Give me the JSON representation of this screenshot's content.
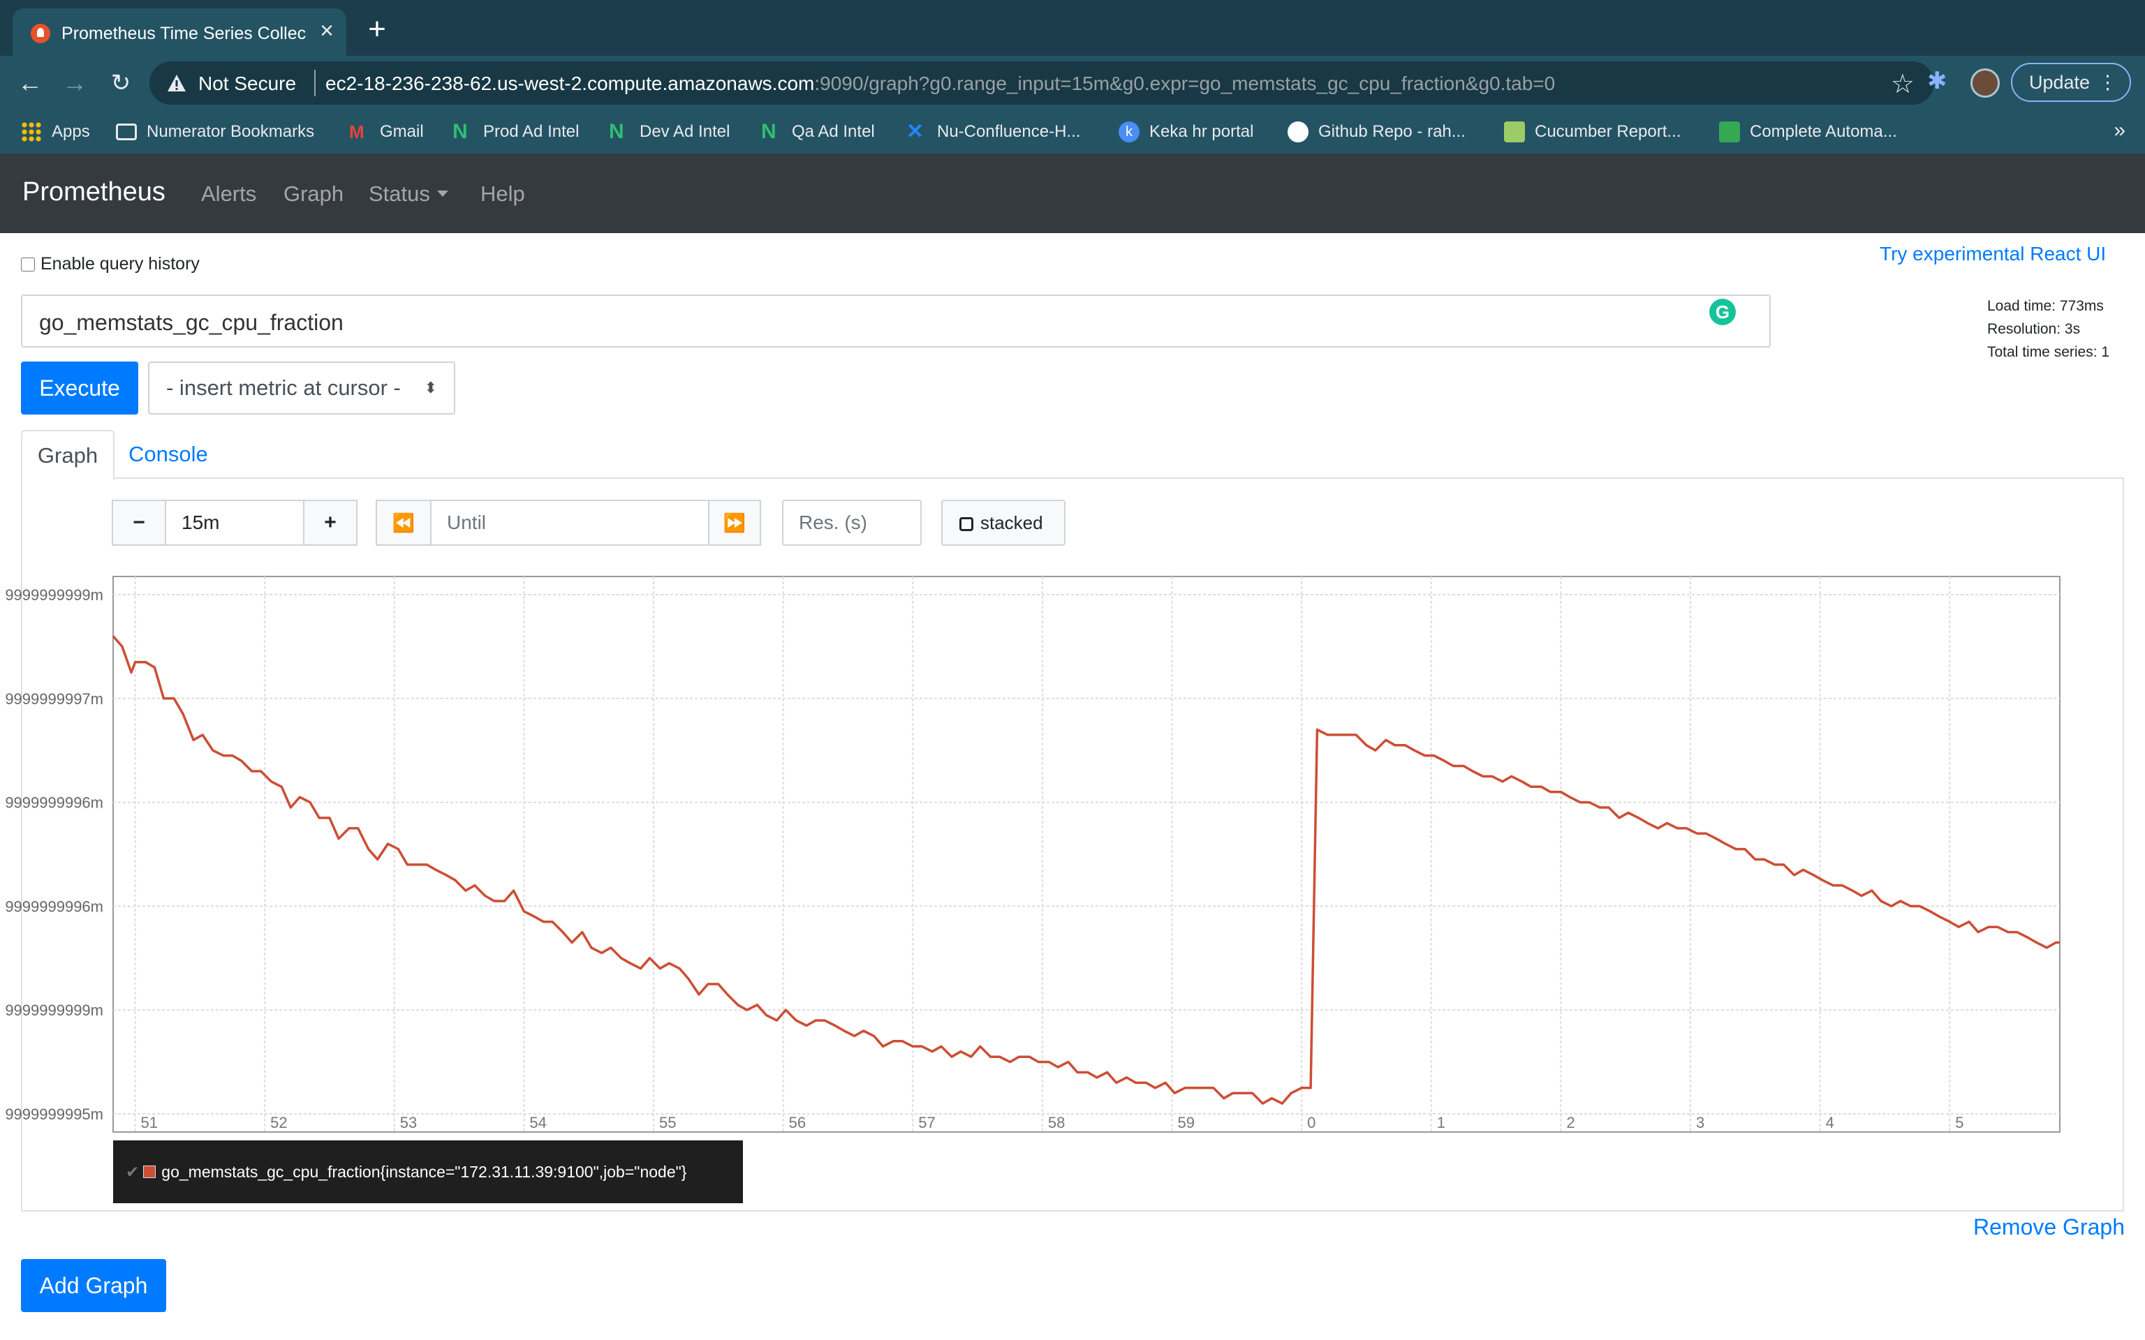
{
  "browser": {
    "tab_title": "Prometheus Time Series Collec",
    "security_label": "Not Secure",
    "url_host": "ec2-18-236-238-62.us-west-2.compute.amazonaws.com",
    "url_rest": ":9090/graph?g0.range_input=15m&g0.expr=go_memstats_gc_cpu_fraction&g0.tab=0",
    "update_label": "Update",
    "bookmarks": [
      {
        "label": "Apps",
        "color": "#fbbc04"
      },
      {
        "label": "Numerator Bookmarks",
        "color": "#ffffff"
      },
      {
        "label": "Gmail",
        "color": "#ea4335"
      },
      {
        "label": "Prod Ad Intel",
        "color": "#2fbf71"
      },
      {
        "label": "Dev Ad Intel",
        "color": "#2fbf71"
      },
      {
        "label": "Qa Ad Intel",
        "color": "#2fbf71"
      },
      {
        "label": "Nu-Confluence-H...",
        "color": "#2684ff"
      },
      {
        "label": "Keka hr portal",
        "color": "#4a8df6"
      },
      {
        "label": "Github Repo - rah...",
        "color": "#ffffff"
      },
      {
        "label": "Cucumber Report...",
        "color": "#9ccc65"
      },
      {
        "label": "Complete Automa...",
        "color": "#34a853"
      }
    ]
  },
  "nav": {
    "brand": "Prometheus",
    "alerts": "Alerts",
    "graph": "Graph",
    "status": "Status",
    "help": "Help"
  },
  "page": {
    "history_label": "Enable query history",
    "react_link": "Try experimental React UI",
    "stats": {
      "load_time": "Load time: 773ms",
      "resolution": "Resolution: 3s",
      "total_series": "Total time series: 1"
    },
    "expression": "go_memstats_gc_cpu_fraction",
    "execute_label": "Execute",
    "metric_select": "- insert metric at cursor -",
    "tab_graph": "Graph",
    "tab_console": "Console",
    "range_value": "15m",
    "until_placeholder": "Until",
    "res_placeholder": "Res. (s)",
    "stacked_label": "stacked",
    "remove_graph": "Remove Graph",
    "add_graph": "Add Graph"
  },
  "chart_data": {
    "type": "line",
    "y_tick_labels": [
      "9999999999m",
      "9999999997m",
      "9999999996m",
      "9999999996m",
      "9999999999m",
      "9999999995m"
    ],
    "x_tick_labels": [
      "51",
      "52",
      "53",
      "54",
      "55",
      "56",
      "57",
      "58",
      "59",
      "0",
      "1",
      "2",
      "3",
      "4",
      "5"
    ],
    "x_range": [
      50.83,
      65.85
    ],
    "y_range": [
      0,
      1
    ],
    "grid": true,
    "series": [
      {
        "name": "go_memstats_gc_cpu_fraction{instance=\"172.31.11.39:9100\",job=\"node\"}",
        "color": "#cc4e35",
        "points": [
          [
            50.83,
            0.92
          ],
          [
            50.9,
            0.9
          ],
          [
            50.97,
            0.85
          ],
          [
            51.0,
            0.87
          ],
          [
            51.08,
            0.87
          ],
          [
            51.15,
            0.86
          ],
          [
            51.22,
            0.8
          ],
          [
            51.3,
            0.8
          ],
          [
            51.37,
            0.77
          ],
          [
            51.45,
            0.72
          ],
          [
            51.52,
            0.73
          ],
          [
            51.6,
            0.7
          ],
          [
            51.68,
            0.69
          ],
          [
            51.75,
            0.69
          ],
          [
            51.82,
            0.68
          ],
          [
            51.9,
            0.66
          ],
          [
            51.97,
            0.66
          ],
          [
            52.05,
            0.64
          ],
          [
            52.13,
            0.63
          ],
          [
            52.2,
            0.59
          ],
          [
            52.27,
            0.61
          ],
          [
            52.35,
            0.6
          ],
          [
            52.42,
            0.57
          ],
          [
            52.5,
            0.57
          ],
          [
            52.57,
            0.53
          ],
          [
            52.65,
            0.55
          ],
          [
            52.72,
            0.55
          ],
          [
            52.8,
            0.51
          ],
          [
            52.87,
            0.49
          ],
          [
            52.95,
            0.52
          ],
          [
            53.03,
            0.51
          ],
          [
            53.1,
            0.48
          ],
          [
            53.18,
            0.48
          ],
          [
            53.25,
            0.48
          ],
          [
            53.32,
            0.47
          ],
          [
            53.4,
            0.46
          ],
          [
            53.47,
            0.45
          ],
          [
            53.55,
            0.43
          ],
          [
            53.62,
            0.44
          ],
          [
            53.7,
            0.42
          ],
          [
            53.77,
            0.41
          ],
          [
            53.85,
            0.41
          ],
          [
            53.92,
            0.43
          ],
          [
            54.0,
            0.39
          ],
          [
            54.08,
            0.38
          ],
          [
            54.15,
            0.37
          ],
          [
            54.22,
            0.37
          ],
          [
            54.3,
            0.35
          ],
          [
            54.37,
            0.33
          ],
          [
            54.45,
            0.35
          ],
          [
            54.52,
            0.32
          ],
          [
            54.6,
            0.31
          ],
          [
            54.67,
            0.32
          ],
          [
            54.75,
            0.3
          ],
          [
            54.82,
            0.29
          ],
          [
            54.9,
            0.28
          ],
          [
            54.97,
            0.3
          ],
          [
            55.05,
            0.28
          ],
          [
            55.12,
            0.29
          ],
          [
            55.2,
            0.28
          ],
          [
            55.27,
            0.26
          ],
          [
            55.35,
            0.23
          ],
          [
            55.42,
            0.25
          ],
          [
            55.5,
            0.25
          ],
          [
            55.57,
            0.23
          ],
          [
            55.65,
            0.21
          ],
          [
            55.72,
            0.2
          ],
          [
            55.8,
            0.21
          ],
          [
            55.87,
            0.19
          ],
          [
            55.95,
            0.18
          ],
          [
            56.02,
            0.2
          ],
          [
            56.1,
            0.18
          ],
          [
            56.18,
            0.17
          ],
          [
            56.25,
            0.18
          ],
          [
            56.32,
            0.18
          ],
          [
            56.4,
            0.17
          ],
          [
            56.47,
            0.16
          ],
          [
            56.55,
            0.15
          ],
          [
            56.62,
            0.16
          ],
          [
            56.7,
            0.15
          ],
          [
            56.77,
            0.13
          ],
          [
            56.85,
            0.14
          ],
          [
            56.92,
            0.14
          ],
          [
            57.0,
            0.13
          ],
          [
            57.07,
            0.13
          ],
          [
            57.15,
            0.12
          ],
          [
            57.22,
            0.13
          ],
          [
            57.3,
            0.11
          ],
          [
            57.37,
            0.12
          ],
          [
            57.45,
            0.11
          ],
          [
            57.52,
            0.13
          ],
          [
            57.6,
            0.11
          ],
          [
            57.67,
            0.11
          ],
          [
            57.75,
            0.1
          ],
          [
            57.82,
            0.11
          ],
          [
            57.9,
            0.11
          ],
          [
            57.97,
            0.1
          ],
          [
            58.05,
            0.1
          ],
          [
            58.12,
            0.09
          ],
          [
            58.2,
            0.1
          ],
          [
            58.27,
            0.08
          ],
          [
            58.35,
            0.08
          ],
          [
            58.42,
            0.07
          ],
          [
            58.5,
            0.08
          ],
          [
            58.57,
            0.06
          ],
          [
            58.65,
            0.07
          ],
          [
            58.72,
            0.06
          ],
          [
            58.8,
            0.06
          ],
          [
            58.87,
            0.05
          ],
          [
            58.95,
            0.06
          ],
          [
            59.02,
            0.04
          ],
          [
            59.1,
            0.05
          ],
          [
            59.17,
            0.05
          ],
          [
            59.25,
            0.05
          ],
          [
            59.32,
            0.05
          ],
          [
            59.4,
            0.03
          ],
          [
            59.47,
            0.04
          ],
          [
            59.55,
            0.04
          ],
          [
            59.62,
            0.04
          ],
          [
            59.7,
            0.02
          ],
          [
            59.77,
            0.03
          ],
          [
            59.85,
            0.02
          ],
          [
            59.92,
            0.04
          ],
          [
            60.0,
            0.05
          ],
          [
            60.07,
            0.05
          ],
          [
            60.12,
            0.74
          ],
          [
            60.2,
            0.73
          ],
          [
            60.27,
            0.73
          ],
          [
            60.35,
            0.73
          ],
          [
            60.42,
            0.73
          ],
          [
            60.5,
            0.71
          ],
          [
            60.57,
            0.7
          ],
          [
            60.65,
            0.72
          ],
          [
            60.72,
            0.71
          ],
          [
            60.8,
            0.71
          ],
          [
            60.87,
            0.7
          ],
          [
            60.95,
            0.69
          ],
          [
            61.02,
            0.69
          ],
          [
            61.1,
            0.68
          ],
          [
            61.17,
            0.67
          ],
          [
            61.25,
            0.67
          ],
          [
            61.32,
            0.66
          ],
          [
            61.4,
            0.65
          ],
          [
            61.47,
            0.65
          ],
          [
            61.55,
            0.64
          ],
          [
            61.62,
            0.65
          ],
          [
            61.7,
            0.64
          ],
          [
            61.77,
            0.63
          ],
          [
            61.85,
            0.63
          ],
          [
            61.92,
            0.62
          ],
          [
            62.0,
            0.62
          ],
          [
            62.07,
            0.61
          ],
          [
            62.15,
            0.6
          ],
          [
            62.22,
            0.6
          ],
          [
            62.3,
            0.59
          ],
          [
            62.37,
            0.59
          ],
          [
            62.45,
            0.57
          ],
          [
            62.52,
            0.58
          ],
          [
            62.6,
            0.57
          ],
          [
            62.67,
            0.56
          ],
          [
            62.75,
            0.55
          ],
          [
            62.82,
            0.56
          ],
          [
            62.9,
            0.55
          ],
          [
            62.97,
            0.55
          ],
          [
            63.05,
            0.54
          ],
          [
            63.12,
            0.54
          ],
          [
            63.2,
            0.53
          ],
          [
            63.27,
            0.52
          ],
          [
            63.35,
            0.51
          ],
          [
            63.42,
            0.51
          ],
          [
            63.5,
            0.49
          ],
          [
            63.57,
            0.49
          ],
          [
            63.65,
            0.48
          ],
          [
            63.72,
            0.48
          ],
          [
            63.8,
            0.46
          ],
          [
            63.87,
            0.47
          ],
          [
            63.95,
            0.46
          ],
          [
            64.02,
            0.45
          ],
          [
            64.1,
            0.44
          ],
          [
            64.17,
            0.44
          ],
          [
            64.25,
            0.43
          ],
          [
            64.32,
            0.42
          ],
          [
            64.4,
            0.43
          ],
          [
            64.47,
            0.41
          ],
          [
            64.55,
            0.4
          ],
          [
            64.62,
            0.41
          ],
          [
            64.7,
            0.4
          ],
          [
            64.77,
            0.4
          ],
          [
            64.85,
            0.39
          ],
          [
            64.92,
            0.38
          ],
          [
            65.0,
            0.37
          ],
          [
            65.07,
            0.36
          ],
          [
            65.15,
            0.37
          ],
          [
            65.22,
            0.35
          ],
          [
            65.3,
            0.36
          ],
          [
            65.37,
            0.36
          ],
          [
            65.45,
            0.35
          ],
          [
            65.52,
            0.35
          ],
          [
            65.6,
            0.34
          ],
          [
            65.67,
            0.33
          ],
          [
            65.75,
            0.32
          ],
          [
            65.82,
            0.33
          ],
          [
            65.85,
            0.33
          ]
        ]
      }
    ]
  }
}
